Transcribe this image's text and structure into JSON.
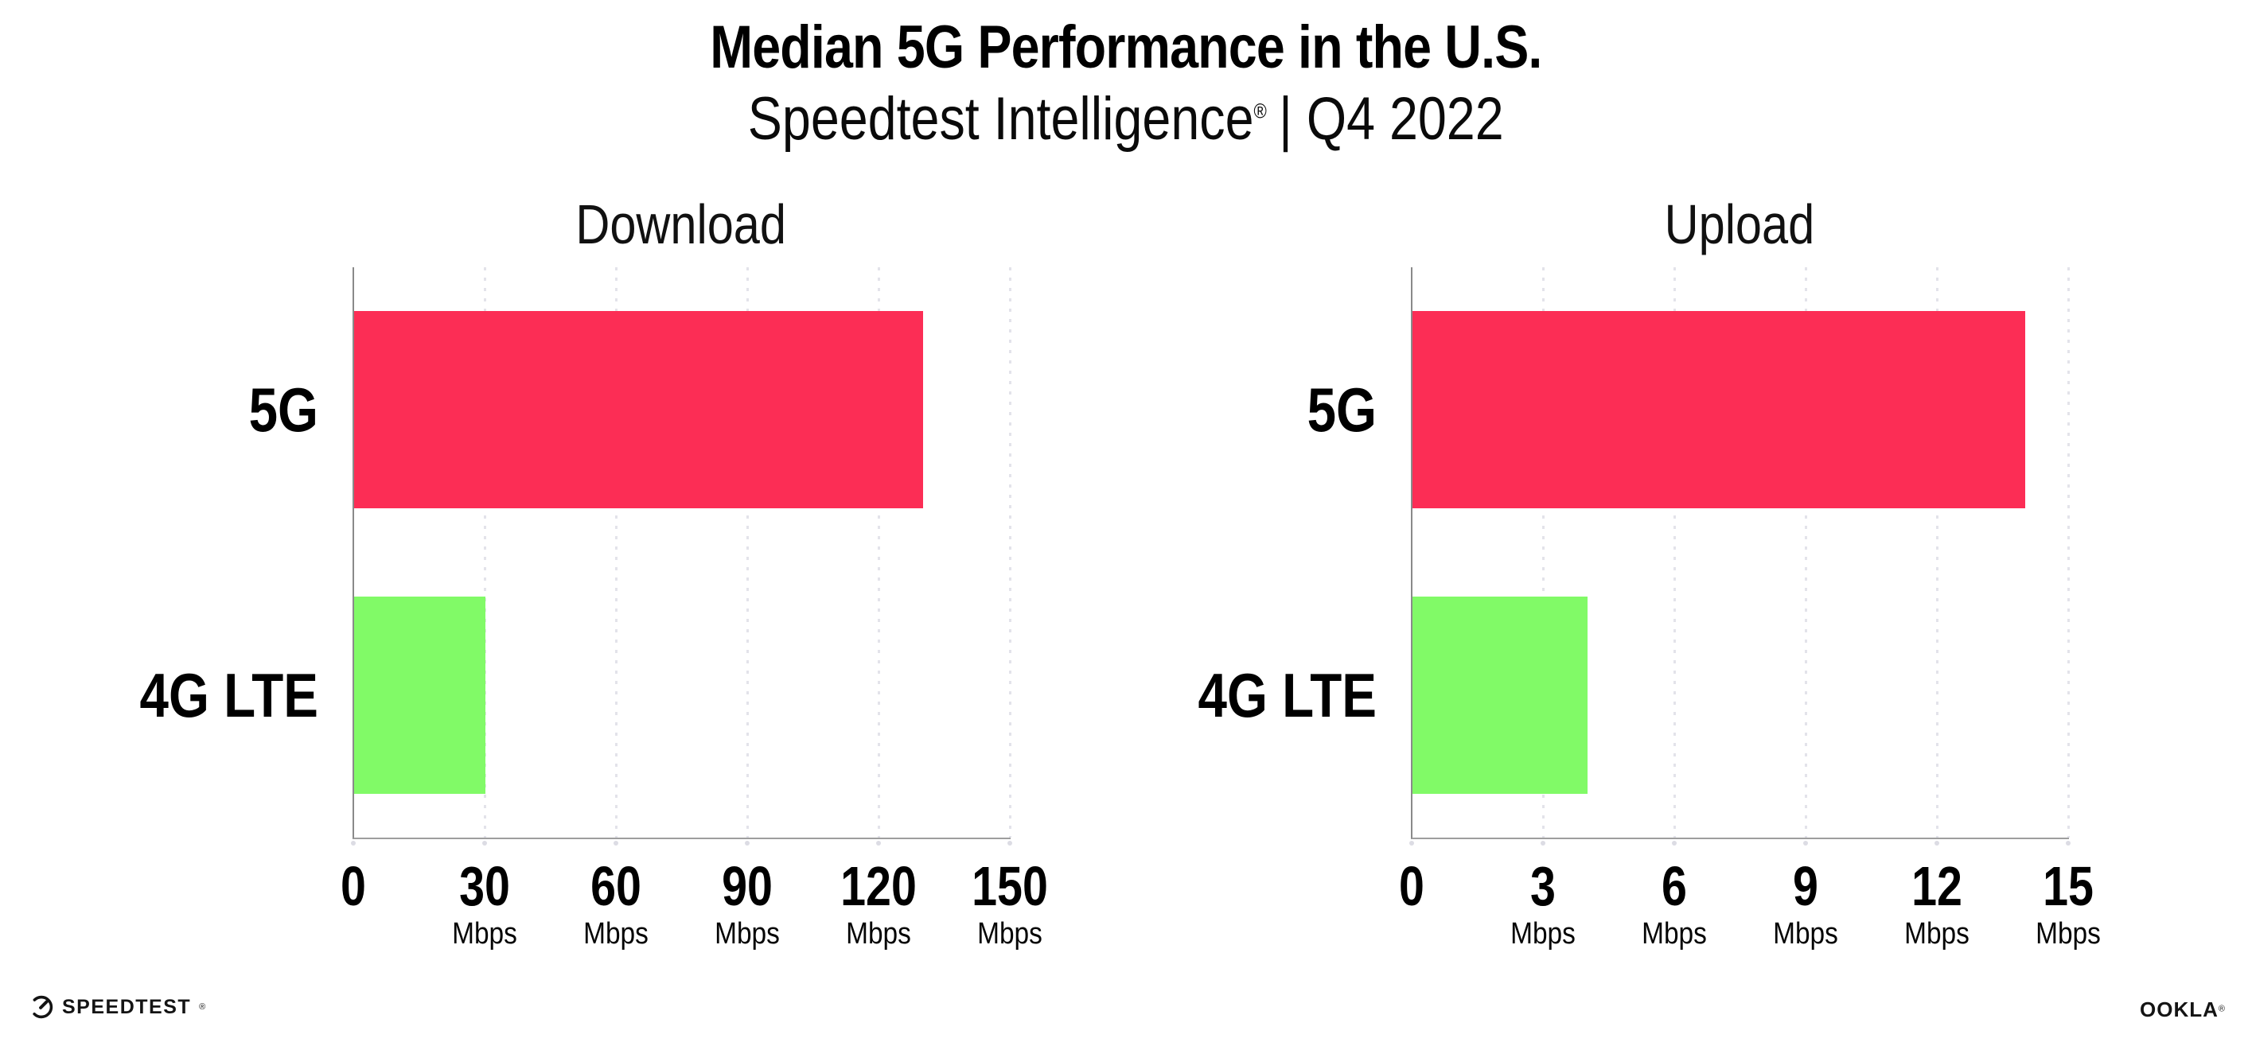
{
  "header": {
    "title": "Median 5G Performance in the U.S.",
    "subtitle": {
      "brand": "Speedtest Intelligence",
      "registered": "®",
      "rest": "| Q4 2022"
    }
  },
  "chart_data": [
    {
      "type": "bar",
      "orientation": "horizontal",
      "title": "Download",
      "categories": [
        "5G",
        "4G LTE"
      ],
      "values": [
        130,
        30
      ],
      "unit": "Mbps",
      "xlabel": "",
      "ylabel": "",
      "xlim": [
        0,
        150
      ],
      "xticks": [
        0,
        30,
        60,
        90,
        120,
        150
      ],
      "grid": "dotted-vertical",
      "legend": "none",
      "bar_colors": [
        "#fc2d55",
        "#81fa67"
      ]
    },
    {
      "type": "bar",
      "orientation": "horizontal",
      "title": "Upload",
      "categories": [
        "5G",
        "4G LTE"
      ],
      "values": [
        14,
        4
      ],
      "unit": "Mbps",
      "xlabel": "",
      "ylabel": "",
      "xlim": [
        0,
        15
      ],
      "xticks": [
        0,
        3,
        6,
        9,
        12,
        15
      ],
      "grid": "dotted-vertical",
      "legend": "none",
      "bar_colors": [
        "#fc2d55",
        "#81fa67"
      ]
    }
  ],
  "footer": {
    "speedtest_logo_text": "SPEEDTEST",
    "speedtest_trademark": "®",
    "ookla_logo_text": "OOKLA",
    "ookla_trademark": "®"
  },
  "colors": {
    "bar_5g": "#fc2d55",
    "bar_4g_lte": "#81fa67",
    "axis_spine": "#8a8a8a",
    "axis_bottom": "#9e9e9e",
    "gridline_dots": "#e3e3ea",
    "text": "#000000"
  }
}
